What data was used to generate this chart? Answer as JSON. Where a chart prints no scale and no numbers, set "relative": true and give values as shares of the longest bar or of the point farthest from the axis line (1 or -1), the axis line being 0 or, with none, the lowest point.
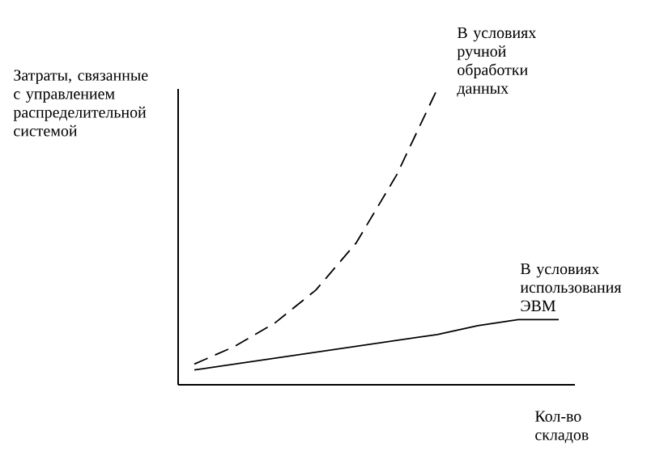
{
  "chart_data": {
    "type": "line",
    "relative": true,
    "ylabel": "Затраты, связанные с управлением распределительной системой",
    "xlabel": "Кол-во складов",
    "categories": [
      null,
      null,
      null,
      null,
      null,
      null,
      null,
      null,
      null,
      null
    ],
    "series": [
      {
        "name": "В условиях ручной обработки данных",
        "color": "#000000",
        "line_style": "dashed",
        "values": [
          0.07,
          0.13,
          0.21,
          0.32,
          0.48,
          0.71,
          1.0,
          null,
          null,
          null
        ]
      },
      {
        "name": "В условиях использования ЭВМ",
        "color": "#000000",
        "line_style": "solid",
        "values": [
          0.05,
          0.07,
          0.09,
          0.11,
          0.13,
          0.15,
          0.17,
          0.2,
          0.22,
          0.22
        ]
      }
    ]
  }
}
